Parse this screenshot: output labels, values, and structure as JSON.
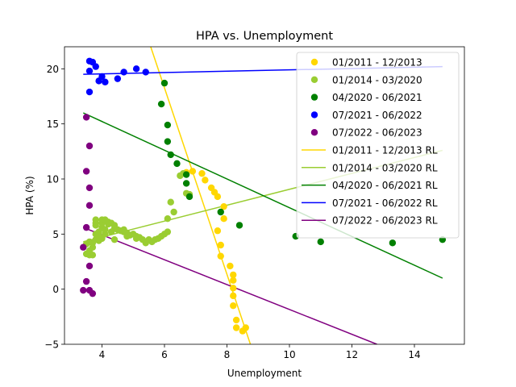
{
  "chart_data": {
    "type": "scatter",
    "title": "HPA vs. Unemployment",
    "xlabel": "Unemployment",
    "ylabel": "HPA (%)",
    "xlim": [
      2.8,
      15.6
    ],
    "ylim": [
      -5,
      22
    ],
    "xticks": [
      4,
      6,
      8,
      10,
      12,
      14
    ],
    "yticks": [
      -5,
      0,
      5,
      10,
      15,
      20
    ],
    "grid": false,
    "legend_position": "top-right",
    "series": [
      {
        "name": "01/2011 - 12/2013",
        "color": "#FFD700",
        "points": [
          [
            5.6,
            22.5
          ],
          [
            6.7,
            10.6
          ],
          [
            6.9,
            10.7
          ],
          [
            7.2,
            10.5
          ],
          [
            7.3,
            9.9
          ],
          [
            7.5,
            9.2
          ],
          [
            7.6,
            8.8
          ],
          [
            7.7,
            8.4
          ],
          [
            7.9,
            7.5
          ],
          [
            7.9,
            6.4
          ],
          [
            7.7,
            5.3
          ],
          [
            7.8,
            4.0
          ],
          [
            7.8,
            3.0
          ],
          [
            8.1,
            2.1
          ],
          [
            8.2,
            1.3
          ],
          [
            8.2,
            0.8
          ],
          [
            8.2,
            0.1
          ],
          [
            8.2,
            -0.6
          ],
          [
            8.2,
            -1.5
          ],
          [
            8.3,
            -2.8
          ],
          [
            8.3,
            -3.5
          ],
          [
            8.5,
            -3.8
          ],
          [
            8.6,
            -3.5
          ]
        ],
        "regression": [
          [
            5.5,
            22.5
          ],
          [
            8.75,
            -5
          ]
        ]
      },
      {
        "name": "01/2014 - 03/2020",
        "color": "#9ACD32",
        "points": [
          [
            3.5,
            4.1
          ],
          [
            3.5,
            3.2
          ],
          [
            3.6,
            4.3
          ],
          [
            3.6,
            3.5
          ],
          [
            3.6,
            3.1
          ],
          [
            3.7,
            4.2
          ],
          [
            3.7,
            3.8
          ],
          [
            3.7,
            3.1
          ],
          [
            3.8,
            4.5
          ],
          [
            3.8,
            5.0
          ],
          [
            3.8,
            5.8
          ],
          [
            3.8,
            6.0
          ],
          [
            3.8,
            6.3
          ],
          [
            3.9,
            5.2
          ],
          [
            3.9,
            4.8
          ],
          [
            3.9,
            4.4
          ],
          [
            4.0,
            4.6
          ],
          [
            4.0,
            5.6
          ],
          [
            4.0,
            6.0
          ],
          [
            4.0,
            6.3
          ],
          [
            4.1,
            5.4
          ],
          [
            4.1,
            6.3
          ],
          [
            4.1,
            5.0
          ],
          [
            4.2,
            5.9
          ],
          [
            4.2,
            6.1
          ],
          [
            4.3,
            6.0
          ],
          [
            4.3,
            5.2
          ],
          [
            4.4,
            5.8
          ],
          [
            4.4,
            5.5
          ],
          [
            4.4,
            4.5
          ],
          [
            4.5,
            5.4
          ],
          [
            4.6,
            5.3
          ],
          [
            4.7,
            5.2
          ],
          [
            4.7,
            5.4
          ],
          [
            4.8,
            4.8
          ],
          [
            4.8,
            5.1
          ],
          [
            4.9,
            4.9
          ],
          [
            5.0,
            5.0
          ],
          [
            5.1,
            4.8
          ],
          [
            5.1,
            4.6
          ],
          [
            5.2,
            4.7
          ],
          [
            5.3,
            4.5
          ],
          [
            5.4,
            4.2
          ],
          [
            5.5,
            4.5
          ],
          [
            5.6,
            4.3
          ],
          [
            5.7,
            4.5
          ],
          [
            5.8,
            4.6
          ],
          [
            5.9,
            4.8
          ],
          [
            6.0,
            5.0
          ],
          [
            6.1,
            5.2
          ],
          [
            6.1,
            6.4
          ],
          [
            6.2,
            7.9
          ],
          [
            6.3,
            7.0
          ],
          [
            6.5,
            10.3
          ],
          [
            6.6,
            10.5
          ],
          [
            6.7,
            8.7
          ],
          [
            6.8,
            8.6
          ]
        ],
        "regression": [
          [
            3.4,
            4.3
          ],
          [
            14.9,
            12.6
          ]
        ]
      },
      {
        "name": "04/2020 - 06/2021",
        "color": "#008000",
        "points": [
          [
            5.9,
            16.8
          ],
          [
            6.0,
            18.7
          ],
          [
            6.1,
            14.9
          ],
          [
            6.1,
            13.4
          ],
          [
            6.2,
            12.2
          ],
          [
            6.4,
            11.4
          ],
          [
            6.7,
            10.4
          ],
          [
            6.7,
            9.6
          ],
          [
            6.8,
            8.4
          ],
          [
            7.8,
            7.0
          ],
          [
            8.4,
            5.8
          ],
          [
            10.2,
            4.8
          ],
          [
            11.0,
            4.3
          ],
          [
            13.3,
            4.2
          ],
          [
            14.9,
            4.5
          ]
        ],
        "regression": [
          [
            3.4,
            16.0
          ],
          [
            14.9,
            1.0
          ]
        ]
      },
      {
        "name": "07/2021 - 06/2022",
        "color": "#0000FF",
        "points": [
          [
            3.6,
            20.7
          ],
          [
            3.6,
            19.8
          ],
          [
            3.7,
            20.6
          ],
          [
            3.6,
            17.9
          ],
          [
            3.8,
            20.2
          ],
          [
            3.9,
            18.9
          ],
          [
            4.0,
            19.3
          ],
          [
            4.1,
            18.8
          ],
          [
            4.5,
            19.1
          ],
          [
            4.7,
            19.7
          ],
          [
            5.1,
            20.0
          ],
          [
            5.4,
            19.7
          ]
        ],
        "regression": [
          [
            3.4,
            19.5
          ],
          [
            14.9,
            20.2
          ]
        ]
      },
      {
        "name": "07/2022 - 06/2023",
        "color": "#800080",
        "points": [
          [
            3.4,
            3.8
          ],
          [
            3.5,
            15.6
          ],
          [
            3.5,
            10.7
          ],
          [
            3.5,
            5.6
          ],
          [
            3.6,
            13.0
          ],
          [
            3.6,
            9.2
          ],
          [
            3.6,
            7.6
          ],
          [
            3.6,
            2.1
          ],
          [
            3.6,
            -0.1
          ],
          [
            3.5,
            0.7
          ],
          [
            3.4,
            -0.1
          ],
          [
            3.7,
            -0.4
          ]
        ],
        "regression": [
          [
            3.4,
            5.6
          ],
          [
            12.8,
            -5
          ]
        ]
      }
    ],
    "legend": [
      {
        "label": "01/2011 - 12/2013",
        "marker": "dot",
        "color": "#FFD700"
      },
      {
        "label": "01/2014 - 03/2020",
        "marker": "dot",
        "color": "#9ACD32"
      },
      {
        "label": "04/2020 - 06/2021",
        "marker": "dot",
        "color": "#008000"
      },
      {
        "label": "07/2021 - 06/2022",
        "marker": "dot",
        "color": "#0000FF"
      },
      {
        "label": "07/2022 - 06/2023",
        "marker": "dot",
        "color": "#800080"
      },
      {
        "label": "01/2011 - 12/2013 RL",
        "marker": "line",
        "color": "#FFD700"
      },
      {
        "label": "01/2014 - 03/2020 RL",
        "marker": "line",
        "color": "#9ACD32"
      },
      {
        "label": "04/2020 - 06/2021 RL",
        "marker": "line",
        "color": "#008000"
      },
      {
        "label": "07/2021 - 06/2022 RL",
        "marker": "line",
        "color": "#0000FF"
      },
      {
        "label": "07/2022 - 06/2023 RL",
        "marker": "line",
        "color": "#800080"
      }
    ]
  }
}
